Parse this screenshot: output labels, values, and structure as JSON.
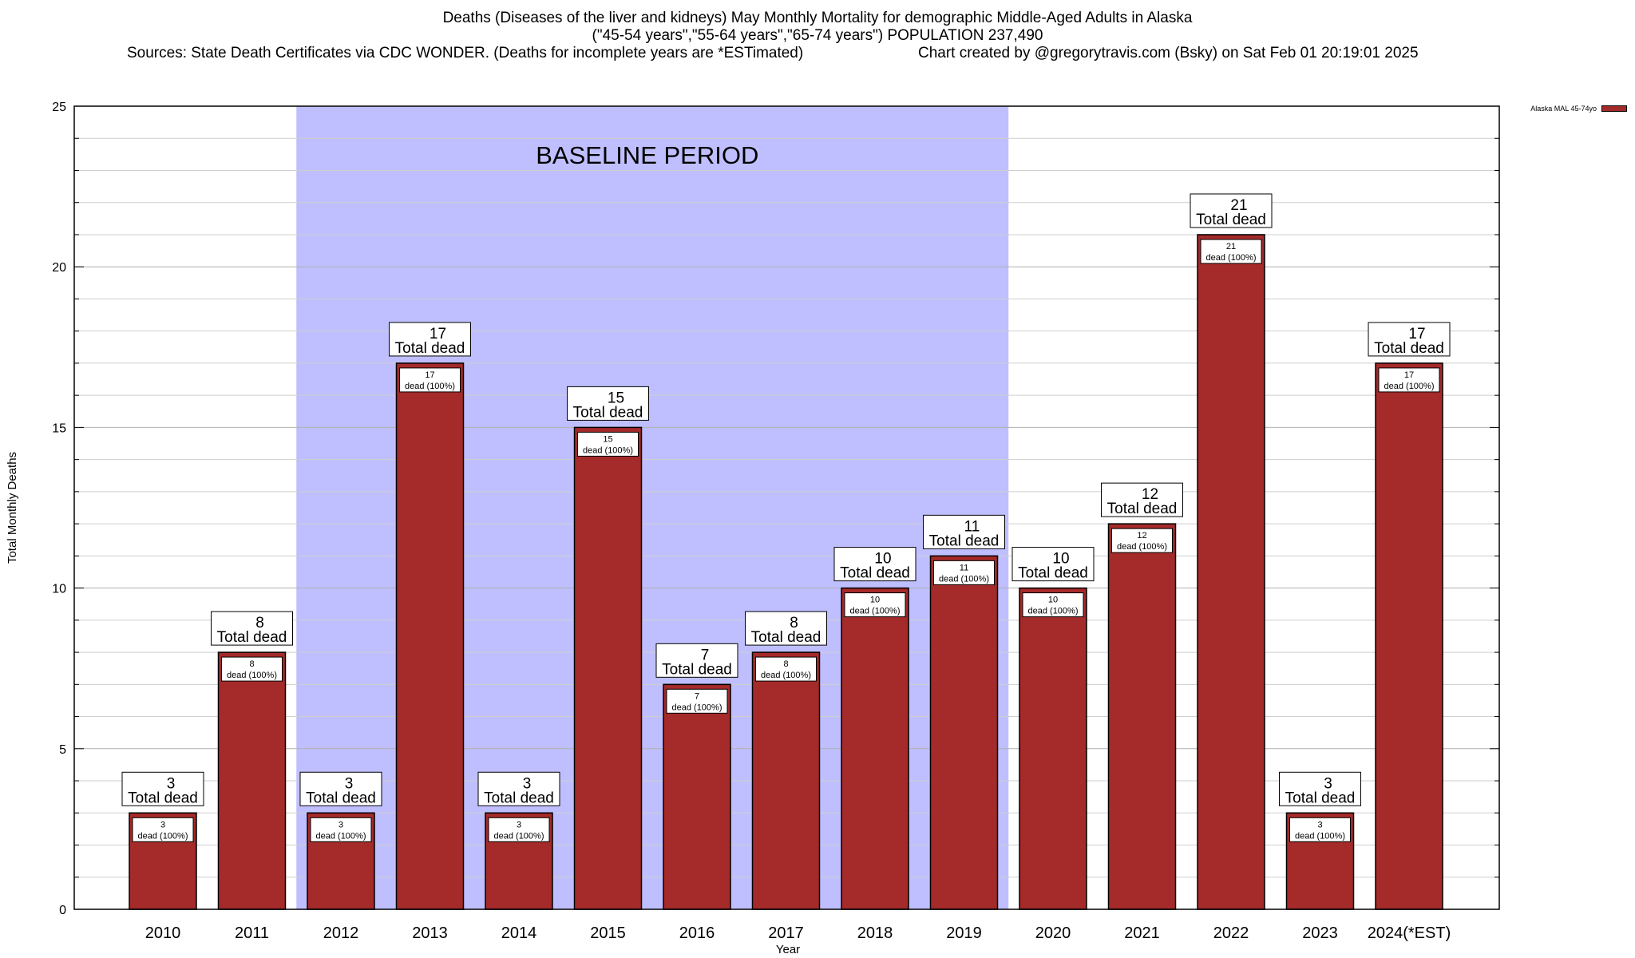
{
  "chart_data": {
    "type": "bar",
    "title_lines": [
      "Deaths (Diseases of the liver and kidneys) May Monthly Mortality for demographic Middle-Aged Adults in Alaska",
      "(\"45-54 years\",\"55-64 years\",\"65-74 years\") POPULATION 237,490"
    ],
    "sources_text": "Sources: State Death Certificates via CDC WONDER. (Deaths for incomplete years are *ESTimated)",
    "credit_text": "Chart created by @gregorytravis.com (Bsky) on Sat Feb 01 20:19:01 2025",
    "xlabel": "Year",
    "ylabel": "Total Monthly Deaths",
    "ylim": [
      0,
      25
    ],
    "y_ticks": [
      0,
      5,
      10,
      15,
      20,
      25
    ],
    "y_minor_step": 1,
    "grid": true,
    "legend_position": "top-right",
    "categories": [
      "2010",
      "2011",
      "2012",
      "2013",
      "2014",
      "2015",
      "2016",
      "2017",
      "2018",
      "2019",
      "2020",
      "2021",
      "2022",
      "2023",
      "2024(*EST)"
    ],
    "series": [
      {
        "name": "Alaska MAL 45-74yo",
        "color": "#a52a2a",
        "values": [
          3,
          8,
          3,
          17,
          3,
          15,
          7,
          8,
          10,
          11,
          10,
          12,
          21,
          3,
          17
        ]
      }
    ],
    "top_label_suffix": "Total dead",
    "inner_label_suffix": "dead (100%)",
    "baseline": {
      "label": "BASELINE PERIOD",
      "start_category": "2012",
      "end_category": "2019",
      "color": "#bfbfff"
    }
  }
}
